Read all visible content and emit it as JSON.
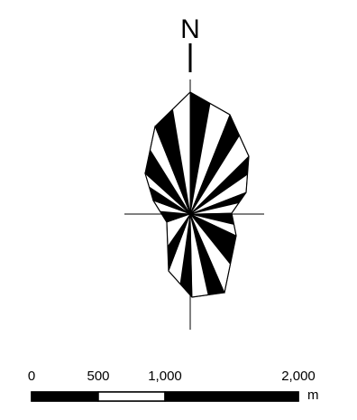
{
  "north_arrow": {
    "label": "N",
    "icon": "north-arrow-icon"
  },
  "rose": {
    "icon": "rose-diagram-icon",
    "colors": {
      "fill": "#000000",
      "stroke": "#000000",
      "background": "#ffffff"
    }
  },
  "scale_bar": {
    "tick_labels": [
      "0",
      "500",
      "1,000",
      "2,000"
    ],
    "unit": "m",
    "segments": [
      {
        "from": 0,
        "to": 500,
        "color": "#000000"
      },
      {
        "from": 500,
        "to": 1000,
        "color": "#ffffff"
      },
      {
        "from": 1000,
        "to": 2000,
        "color": "#000000"
      }
    ]
  }
}
